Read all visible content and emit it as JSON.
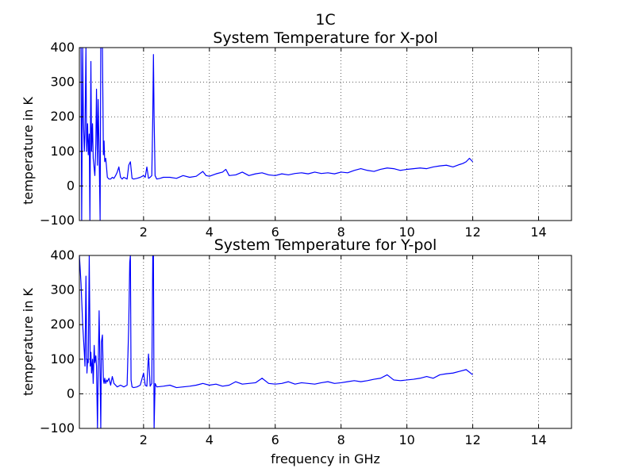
{
  "figure_title": "1C",
  "chart_data": [
    {
      "type": "line",
      "title": "System Temperature for X-pol",
      "xlabel": "",
      "ylabel": "temperature in K",
      "xlim": [
        0.05,
        15
      ],
      "ylim": [
        -100,
        400
      ],
      "xticks": [
        2,
        4,
        6,
        8,
        10,
        12,
        14
      ],
      "yticks": [
        -100,
        0,
        100,
        200,
        300,
        400
      ],
      "grid": true,
      "color": "#0000ff",
      "series": [
        {
          "x": [
            0.05,
            0.07,
            0.1,
            0.12,
            0.15,
            0.17,
            0.2,
            0.22,
            0.25,
            0.27,
            0.3,
            0.32,
            0.35,
            0.37,
            0.4,
            0.42,
            0.45,
            0.47,
            0.5,
            0.52,
            0.55,
            0.57,
            0.6,
            0.62,
            0.65,
            0.68,
            0.7,
            0.72,
            0.75,
            0.78,
            0.8,
            0.82,
            0.85,
            0.87,
            0.9,
            0.95,
            1.0,
            1.05,
            1.1,
            1.15,
            1.2,
            1.25,
            1.3,
            1.35,
            1.4,
            1.5,
            1.55,
            1.6,
            1.65,
            1.7,
            1.8,
            1.9,
            2.0,
            2.05,
            2.1,
            2.15,
            2.2,
            2.25,
            2.28,
            2.3,
            2.32,
            2.35,
            2.4,
            2.5,
            2.6,
            2.8,
            3.0,
            3.2,
            3.4,
            3.6,
            3.8,
            3.9,
            4.0,
            4.2,
            4.4,
            4.5,
            4.6,
            4.8,
            5.0,
            5.2,
            5.4,
            5.6,
            5.8,
            6.0,
            6.2,
            6.4,
            6.6,
            6.8,
            7.0,
            7.2,
            7.4,
            7.6,
            7.8,
            8.0,
            8.2,
            8.4,
            8.6,
            8.8,
            9.0,
            9.2,
            9.4,
            9.6,
            9.8,
            10.0,
            10.2,
            10.4,
            10.6,
            10.8,
            11.0,
            11.2,
            11.4,
            11.6,
            11.7,
            11.8,
            11.9,
            12.0
          ],
          "y": [
            400,
            400,
            400,
            -100,
            400,
            200,
            100,
            150,
            400,
            100,
            180,
            90,
            150,
            -100,
            360,
            100,
            180,
            80,
            50,
            30,
            120,
            280,
            60,
            250,
            100,
            -100,
            400,
            400,
            400,
            90,
            130,
            70,
            80,
            60,
            25,
            20,
            20,
            25,
            22,
            30,
            40,
            55,
            25,
            20,
            25,
            20,
            60,
            70,
            22,
            20,
            22,
            25,
            30,
            25,
            55,
            22,
            25,
            30,
            200,
            380,
            200,
            30,
            20,
            22,
            25,
            25,
            22,
            30,
            25,
            28,
            42,
            30,
            28,
            35,
            40,
            48,
            30,
            32,
            40,
            30,
            35,
            38,
            32,
            30,
            35,
            32,
            36,
            38,
            35,
            40,
            36,
            38,
            35,
            40,
            38,
            45,
            50,
            45,
            42,
            48,
            52,
            50,
            45,
            48,
            50,
            52,
            50,
            55,
            58,
            60,
            55,
            62,
            65,
            70,
            80,
            70
          ]
        }
      ]
    },
    {
      "type": "line",
      "title": "System Temperature for Y-pol",
      "xlabel": "frequency in GHz",
      "ylabel": "temperature in K",
      "xlim": [
        0.05,
        15
      ],
      "ylim": [
        -100,
        400
      ],
      "xticks": [
        2,
        4,
        6,
        8,
        10,
        12,
        14
      ],
      "yticks": [
        -100,
        0,
        100,
        200,
        300,
        400
      ],
      "grid": true,
      "color": "#0000ff",
      "series": [
        {
          "x": [
            0.05,
            0.1,
            0.15,
            0.2,
            0.22,
            0.25,
            0.28,
            0.3,
            0.32,
            0.35,
            0.38,
            0.4,
            0.42,
            0.45,
            0.47,
            0.5,
            0.52,
            0.55,
            0.57,
            0.6,
            0.62,
            0.65,
            0.68,
            0.7,
            0.72,
            0.75,
            0.78,
            0.8,
            0.82,
            0.85,
            0.88,
            0.9,
            0.95,
            1.0,
            1.05,
            1.1,
            1.2,
            1.3,
            1.4,
            1.5,
            1.55,
            1.58,
            1.6,
            1.62,
            1.65,
            1.7,
            1.8,
            1.9,
            2.0,
            2.05,
            2.1,
            2.15,
            2.2,
            2.25,
            2.28,
            2.3,
            2.32,
            2.35,
            2.4,
            2.6,
            2.8,
            3.0,
            3.2,
            3.4,
            3.6,
            3.8,
            4.0,
            4.2,
            4.4,
            4.6,
            4.8,
            5.0,
            5.2,
            5.4,
            5.6,
            5.8,
            6.0,
            6.2,
            6.4,
            6.6,
            6.8,
            7.0,
            7.2,
            7.4,
            7.6,
            7.8,
            8.0,
            8.2,
            8.4,
            8.6,
            8.8,
            9.0,
            9.2,
            9.4,
            9.6,
            9.8,
            10.0,
            10.2,
            10.4,
            10.6,
            10.8,
            11.0,
            11.2,
            11.4,
            11.6,
            11.8,
            12.0
          ],
          "y": [
            400,
            320,
            200,
            120,
            80,
            340,
            60,
            100,
            90,
            400,
            80,
            120,
            60,
            100,
            30,
            140,
            90,
            110,
            80,
            -100,
            60,
            240,
            50,
            -100,
            150,
            170,
            40,
            30,
            45,
            30,
            40,
            35,
            45,
            25,
            50,
            30,
            20,
            25,
            20,
            25,
            200,
            380,
            400,
            40,
            20,
            18,
            20,
            25,
            60,
            25,
            22,
            115,
            22,
            30,
            400,
            400,
            -100,
            30,
            20,
            22,
            25,
            18,
            20,
            22,
            25,
            30,
            25,
            28,
            22,
            25,
            35,
            28,
            30,
            32,
            45,
            30,
            28,
            30,
            35,
            28,
            32,
            30,
            28,
            32,
            35,
            30,
            32,
            35,
            38,
            35,
            38,
            42,
            45,
            55,
            40,
            38,
            40,
            42,
            45,
            50,
            45,
            55,
            58,
            60,
            65,
            70,
            55
          ]
        }
      ]
    }
  ]
}
